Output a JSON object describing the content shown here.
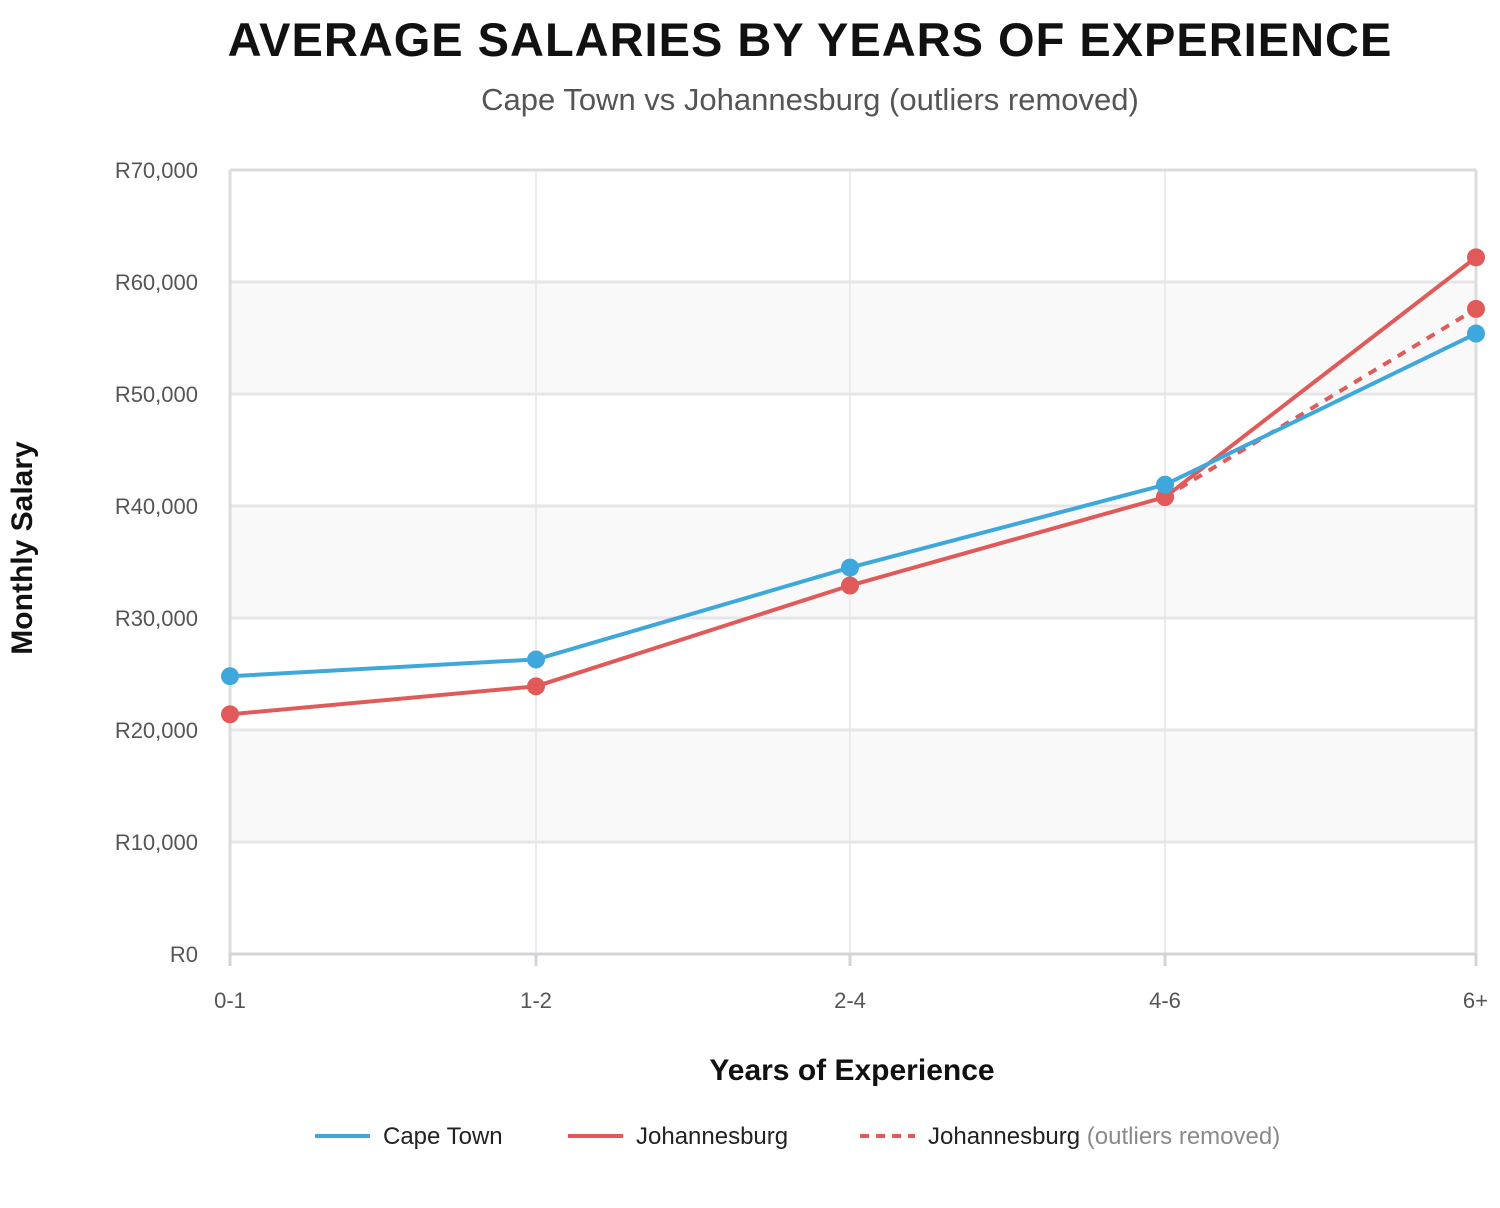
{
  "chart_data": {
    "type": "line",
    "title": "AVERAGE SALARIES BY YEARS OF EXPERIENCE",
    "subtitle": "Cape Town vs Johannesburg (outliers removed)",
    "xlabel": "Years of Experience",
    "ylabel": "Monthly Salary",
    "categories": [
      "0-1",
      "1-2",
      "2-4",
      "4-6",
      "6+"
    ],
    "y_ticks": [
      0,
      10000,
      20000,
      30000,
      40000,
      50000,
      60000,
      70000
    ],
    "y_tick_labels": [
      "R0",
      "R10,000",
      "R20,000",
      "R30,000",
      "R40,000",
      "R50,000",
      "R60,000",
      "R70,000"
    ],
    "ylim": [
      0,
      70000
    ],
    "grid": true,
    "legend_position": "bottom",
    "series": [
      {
        "name": "Cape Town",
        "color": "#3ea8dc",
        "style": "solid",
        "values": [
          24800,
          26300,
          34500,
          41900,
          55400
        ]
      },
      {
        "name": "Johannesburg",
        "color": "#e05a5a",
        "style": "solid",
        "values": [
          21400,
          23900,
          32900,
          40800,
          62200
        ]
      },
      {
        "name": "Johannesburg",
        "note": "(outliers removed)",
        "color": "#e05a5a",
        "style": "dashed",
        "values": [
          null,
          null,
          null,
          40800,
          57600
        ]
      }
    ]
  }
}
